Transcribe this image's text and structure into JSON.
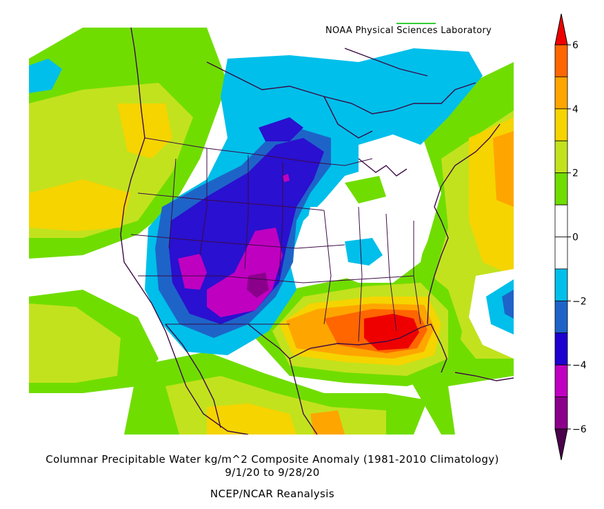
{
  "credit": "NOAA Physical Sciences Laboratory",
  "title": "Columnar Precipitable Water kg/m^2 Composite Anomaly (1981-2010 Climatology)",
  "date_range": "9/1/20  to 9/28/20",
  "source": "NCEP/NCAR Reanalysis",
  "colorbar": {
    "min": -6,
    "max": 6,
    "step": 1,
    "tick_labels": [
      "6",
      "4",
      "2",
      "0",
      "−2",
      "−4",
      "−6"
    ],
    "colors": [
      "#8b008b",
      "#c000c0",
      "#1e00d0",
      "#1e64c8",
      "#00bfea",
      "#ffffff",
      "#ffffff",
      "#70dd00",
      "#c2e21e",
      "#f5d400",
      "#ffa500",
      "#ff6600"
    ],
    "under_color": "#4b004b",
    "over_color": "#ee0000"
  },
  "map": {
    "region": "North America",
    "field_colors": {
      "ocean_green": "#6cd400",
      "yellow_green": "#c8e000",
      "yellow": "#f7d800",
      "orange": "#ffa500",
      "dark_orange": "#ff6600",
      "red": "#ee1100",
      "cyan": "#00bfea",
      "blue": "#1e64c8",
      "indigo": "#2a10d0",
      "magenta": "#c000c0",
      "purple": "#8b008b",
      "coast": "#3b0a45"
    }
  }
}
